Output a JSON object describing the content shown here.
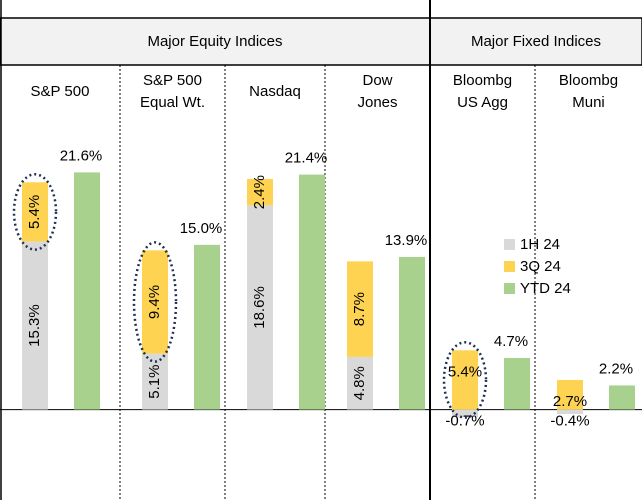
{
  "chart_data": {
    "type": "stacked_bar",
    "groups": [
      {
        "label": "Major Equity Indices",
        "members": [
          0,
          1,
          2,
          3
        ]
      },
      {
        "label": "Major Fixed Indices",
        "members": [
          4,
          5
        ]
      }
    ],
    "categories": [
      [
        "S&P 500"
      ],
      [
        "S&P 500",
        "Equal Wt."
      ],
      [
        "Nasdaq"
      ],
      [
        "Dow",
        "Jones"
      ],
      [
        "Bloombg",
        "US Agg"
      ],
      [
        "Bloombg",
        "Muni"
      ]
    ],
    "series": [
      {
        "name": "1H 24",
        "color": "#d9d9d9",
        "stack": "a",
        "values": [
          15.3,
          5.1,
          18.6,
          4.8,
          -0.7,
          -0.4
        ],
        "value_labels": [
          "15.3%",
          "5.1%",
          "18.6%",
          "4.8%",
          "-0.7%",
          "-0.4%"
        ]
      },
      {
        "name": "3Q 24",
        "color": "#fdd351",
        "stack": "a",
        "values": [
          5.4,
          9.4,
          2.4,
          8.7,
          5.4,
          2.7
        ],
        "value_labels": [
          "5.4%",
          "9.4%",
          "2.4%",
          "8.7%",
          "5.4%",
          "2.7%"
        ]
      },
      {
        "name": "YTD 24",
        "color": "#a9d18e",
        "stack": "b",
        "values": [
          21.6,
          15.0,
          21.4,
          13.9,
          4.7,
          2.2
        ],
        "value_labels": [
          "21.6%",
          "15.0%",
          "21.4%",
          "13.9%",
          "4.7%",
          "2.2%"
        ]
      }
    ],
    "highlighted": [
      0,
      1,
      4
    ],
    "ylim": [
      -5.5,
      22
    ]
  }
}
